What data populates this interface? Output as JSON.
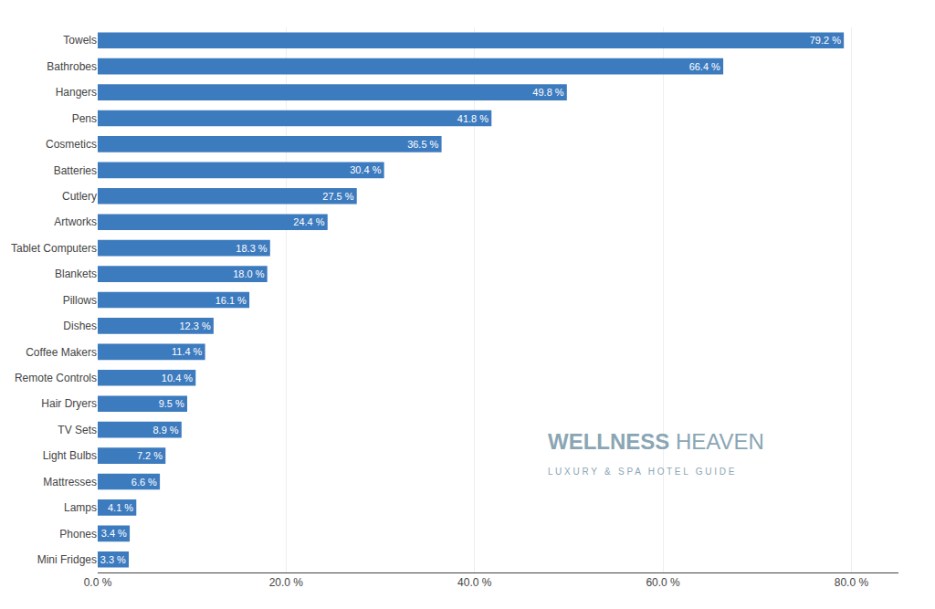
{
  "chart_data": {
    "type": "bar",
    "orientation": "horizontal",
    "categories": [
      "Towels",
      "Bathrobes",
      "Hangers",
      "Pens",
      "Cosmetics",
      "Batteries",
      "Cutlery",
      "Artworks",
      "Tablet Computers",
      "Blankets",
      "Pillows",
      "Dishes",
      "Coffee Makers",
      "Remote Controls",
      "Hair Dryers",
      "TV Sets",
      "Light Bulbs",
      "Mattresses",
      "Lamps",
      "Phones",
      "Mini Fridges"
    ],
    "values": [
      79.2,
      66.4,
      49.8,
      41.8,
      36.5,
      30.4,
      27.5,
      24.4,
      18.3,
      18.0,
      16.1,
      12.3,
      11.4,
      10.4,
      9.5,
      8.9,
      7.2,
      6.6,
      4.1,
      3.4,
      3.3
    ],
    "value_labels": [
      "79.2 %",
      "66.4 %",
      "49.8 %",
      "41.8 %",
      "36.5 %",
      "30.4 %",
      "27.5 %",
      "24.4 %",
      "18.3 %",
      "18.0 %",
      "16.1 %",
      "12.3 %",
      "11.4 %",
      "10.4 %",
      "9.5 %",
      "8.9 %",
      "7.2 %",
      "6.6 %",
      "4.1 %",
      "3.4 %",
      "3.3 %"
    ],
    "data_labels": true,
    "color": "#3d7bbf",
    "xlim": [
      0,
      85
    ],
    "xticks": [
      {
        "value": 0,
        "label": "0.0 %"
      },
      {
        "value": 20,
        "label": "20.0 %"
      },
      {
        "value": 40,
        "label": "40.0 %"
      },
      {
        "value": 60,
        "label": "60.0 %"
      },
      {
        "value": 80,
        "label": "80.0 %"
      }
    ],
    "grid": true,
    "annotations": [
      "WELLNESS",
      "HEAVEN",
      "L U X U R Y   &   S P A   H O T E L   G U I D E"
    ]
  }
}
